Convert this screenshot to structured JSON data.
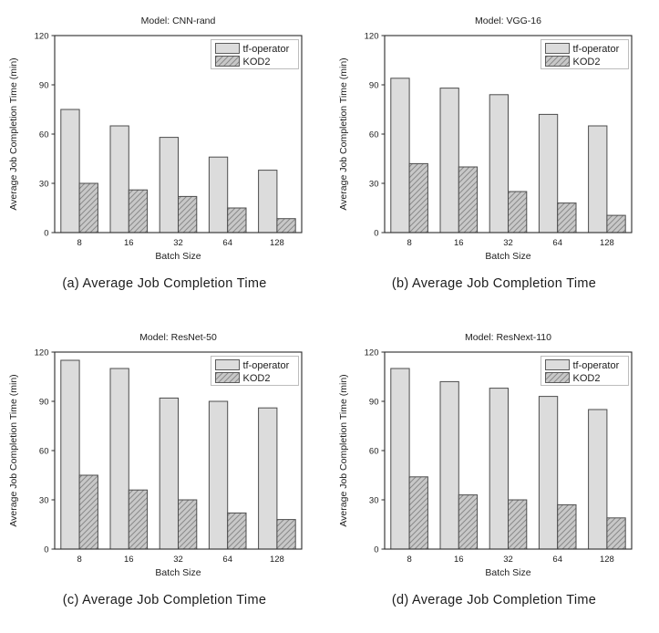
{
  "style": {
    "bar1_fill": "#dcdcdc",
    "bar2_fill": "#c8c8c8",
    "hatch_line": "#8a8a8a",
    "bar_edge": "#4d4d4d",
    "axis_color": "#2b2b2b",
    "tick_label_color": "#1c1c1c",
    "legend_border": "#bdbdbd",
    "legend_bg": "#ffffff"
  },
  "chart_data": [
    {
      "type": "bar",
      "title": "Model: CNN-rand",
      "caption": "(a) Average Job Completion Time",
      "xlabel": "Batch Size",
      "ylabel": "Average Job Completion Time (min)",
      "ylim": [
        0,
        120
      ],
      "yticks": [
        0,
        30,
        60,
        90,
        120
      ],
      "categories": [
        "8",
        "16",
        "32",
        "64",
        "128"
      ],
      "grid": false,
      "legend_position": "upper right",
      "series": [
        {
          "name": "tf-operator",
          "values": [
            75,
            65,
            58,
            46,
            38
          ]
        },
        {
          "name": "KOD2",
          "values": [
            30,
            26,
            22,
            15,
            8.5
          ]
        }
      ]
    },
    {
      "type": "bar",
      "title": "Model: VGG-16",
      "caption": "(b) Average Job Completion Time",
      "xlabel": "Batch Size",
      "ylabel": "Average Job Completion Time (min)",
      "ylim": [
        0,
        120
      ],
      "yticks": [
        0,
        30,
        60,
        90,
        120
      ],
      "categories": [
        "8",
        "16",
        "32",
        "64",
        "128"
      ],
      "grid": false,
      "legend_position": "upper right",
      "series": [
        {
          "name": "tf-operator",
          "values": [
            94,
            88,
            84,
            72,
            65
          ]
        },
        {
          "name": "KOD2",
          "values": [
            42,
            40,
            25,
            18,
            10.5
          ]
        }
      ]
    },
    {
      "type": "bar",
      "title": "Model: ResNet-50",
      "caption": "(c) Average Job Completion Time",
      "xlabel": "Batch Size",
      "ylabel": "Average Job Completion Time (min)",
      "ylim": [
        0,
        120
      ],
      "yticks": [
        0,
        30,
        60,
        90,
        120
      ],
      "categories": [
        "8",
        "16",
        "32",
        "64",
        "128"
      ],
      "grid": false,
      "legend_position": "upper right",
      "series": [
        {
          "name": "tf-operator",
          "values": [
            115,
            110,
            92,
            90,
            86
          ]
        },
        {
          "name": "KOD2",
          "values": [
            45,
            36,
            30,
            22,
            18
          ]
        }
      ]
    },
    {
      "type": "bar",
      "title": "Model: ResNext-110",
      "caption": "(d) Average Job Completion Time",
      "xlabel": "Batch Size",
      "ylabel": "Average Job Completion Time (min)",
      "ylim": [
        0,
        120
      ],
      "yticks": [
        0,
        30,
        60,
        90,
        120
      ],
      "categories": [
        "8",
        "16",
        "32",
        "64",
        "128"
      ],
      "grid": false,
      "legend_position": "upper right",
      "series": [
        {
          "name": "tf-operator",
          "values": [
            110,
            102,
            98,
            93,
            85
          ]
        },
        {
          "name": "KOD2",
          "values": [
            44,
            33,
            30,
            27,
            19
          ]
        }
      ]
    }
  ]
}
